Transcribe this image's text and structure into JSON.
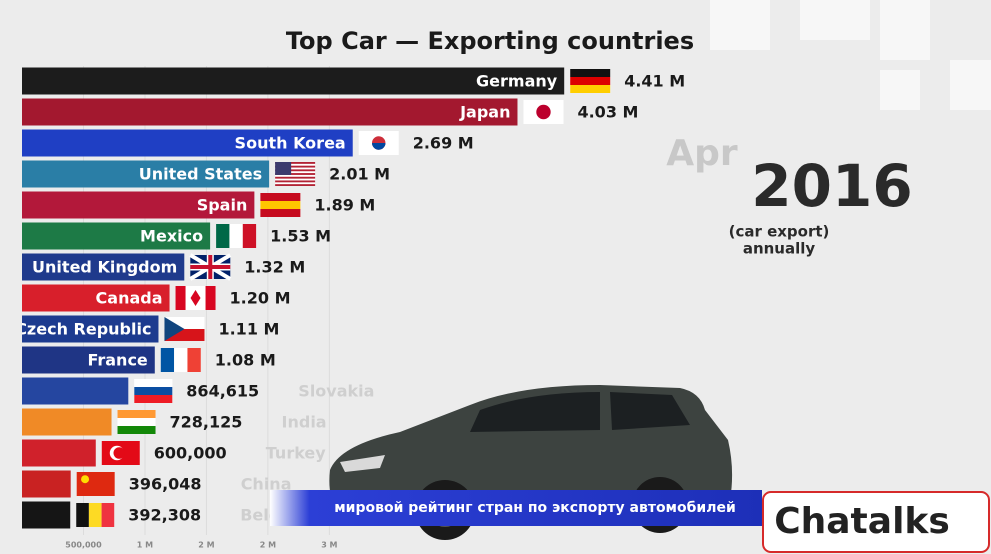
{
  "chart_data": {
    "type": "bar",
    "orientation": "horizontal",
    "title": "Top Car — Exporting countries",
    "categories": [
      "Germany",
      "Japan",
      "South Korea",
      "United States",
      "Spain",
      "Mexico",
      "United Kingdom",
      "Canada",
      "Czech Republic",
      "France",
      "Slovakia",
      "India",
      "Turkey",
      "China",
      "Belgium"
    ],
    "values": [
      4410000,
      4030000,
      2690000,
      2010000,
      1890000,
      1530000,
      1320000,
      1200000,
      1110000,
      1080000,
      864615,
      728125,
      600000,
      396048,
      392308
    ],
    "value_labels": [
      "4.41 M",
      "4.03 M",
      "2.69 M",
      "2.01 M",
      "1.89 M",
      "1.53 M",
      "1.32 M",
      "1.20 M",
      "1.11 M",
      "1.08 M",
      "864,615",
      "728,125",
      "600,000",
      "396,048",
      "392,308"
    ],
    "colors": [
      "#1c1c1c",
      "#a3182f",
      "#1f3fc4",
      "#2a7ea6",
      "#b3183a",
      "#1d7a46",
      "#1f3a8c",
      "#d81f2b",
      "#1d3b8f",
      "#1f3585",
      "#2546a0",
      "#f08a26",
      "#d0212b",
      "#c92222",
      "#151515"
    ],
    "xlim": [
      0,
      7800000
    ],
    "xticks": [
      {
        "value": 500000,
        "label": "500,000"
      },
      {
        "value": 1000000,
        "label": "1 M"
      },
      {
        "value": 1500000,
        "label": "2 M"
      },
      {
        "value": 2000000,
        "label": "2 M"
      },
      {
        "value": 2500000,
        "label": "3 M"
      }
    ],
    "grid": true
  },
  "overlay": {
    "month": "Apr",
    "year": "2016",
    "note": [
      "(car export)",
      "annually"
    ],
    "banner": "мировой рейтинг стран по экспорту автомобилей",
    "brand": "Chatalks"
  }
}
